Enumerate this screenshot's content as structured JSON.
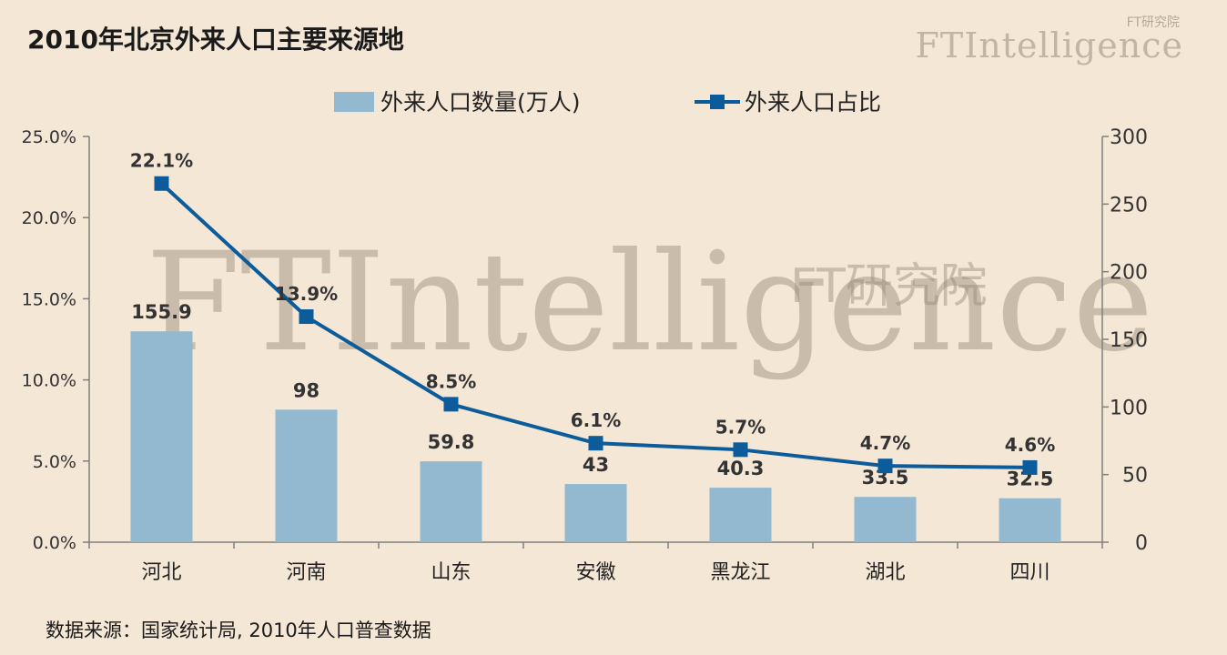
{
  "title": "2010年北京外来人口主要来源地",
  "brand": {
    "main": "FTIntelligence",
    "sub": "FT研究院"
  },
  "watermark": {
    "main": "FTIntelligence",
    "sub": "FT研究院"
  },
  "source_note": "数据来源：国家统计局, 2010年人口普查数据",
  "colors": {
    "bar": "#92b9d0",
    "line": "#0c5c9c",
    "background": "#f4e7d6",
    "axis": "#7f7f7f"
  },
  "chart_data": {
    "type": "bar+line",
    "categories": [
      "河北",
      "河南",
      "山东",
      "安徽",
      "黑龙江",
      "湖北",
      "四川"
    ],
    "series": [
      {
        "name": "外来人口数量(万人)",
        "type": "bar",
        "axis": "right",
        "values": [
          155.9,
          98,
          59.8,
          43,
          40.3,
          33.5,
          32.5
        ],
        "labels": [
          "155.9",
          "98",
          "59.8",
          "43",
          "40.3",
          "33.5",
          "32.5"
        ]
      },
      {
        "name": "外来人口占比",
        "type": "line",
        "axis": "left",
        "values": [
          0.221,
          0.139,
          0.085,
          0.061,
          0.057,
          0.047,
          0.046
        ],
        "labels": [
          "22.1%",
          "13.9%",
          "8.5%",
          "6.1%",
          "5.7%",
          "4.7%",
          "4.6%"
        ]
      }
    ],
    "y_left": {
      "range": [
        0,
        0.25
      ],
      "ticks": [
        0,
        0.05,
        0.1,
        0.15,
        0.2,
        0.25
      ],
      "tick_labels": [
        "0.0%",
        "5.0%",
        "10.0%",
        "15.0%",
        "20.0%",
        "25.0%"
      ]
    },
    "y_right": {
      "range": [
        0,
        300
      ],
      "ticks": [
        0,
        50,
        100,
        150,
        200,
        250,
        300
      ],
      "tick_labels": [
        "0",
        "50",
        "100",
        "150",
        "200",
        "250",
        "300"
      ]
    },
    "legend": "top-center",
    "grid": false
  }
}
